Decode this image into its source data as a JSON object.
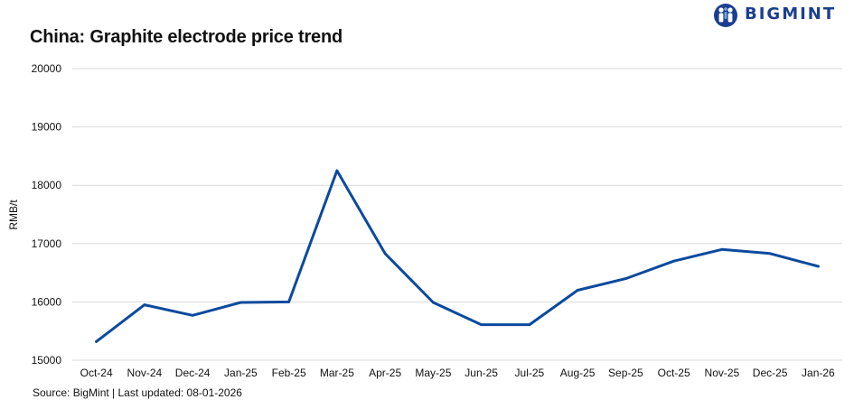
{
  "header": {
    "title": "China: Graphite electrode price trend",
    "brand": "BIGMINT",
    "logo_icon": "bigmint-people-globe-logo"
  },
  "footer": {
    "source": "Source: BigMint | Last updated: 08-01-2026"
  },
  "colors": {
    "line": "#0b4a9e",
    "brand": "#1b3f8f",
    "grid": "#d9d9d9"
  },
  "chart_data": {
    "type": "line",
    "title": "China: Graphite electrode price trend",
    "xlabel": "",
    "ylabel": "RMB/t",
    "ylim": [
      15000,
      20000
    ],
    "yticks": [
      15000,
      16000,
      17000,
      18000,
      19000,
      20000
    ],
    "grid": true,
    "categories": [
      "Oct-24",
      "Nov-24",
      "Dec-24",
      "Jan-25",
      "Feb-25",
      "Mar-25",
      "Apr-25",
      "May-25",
      "Jun-25",
      "Jul-25",
      "Aug-25",
      "Sep-25",
      "Oct-25",
      "Nov-25",
      "Dec-25",
      "Jan-26"
    ],
    "series": [
      {
        "values": [
          15320,
          15950,
          15770,
          15990,
          16000,
          18250,
          16830,
          15990,
          15610,
          15610,
          16200,
          16400,
          16700,
          16900,
          16830,
          16610
        ]
      }
    ]
  }
}
